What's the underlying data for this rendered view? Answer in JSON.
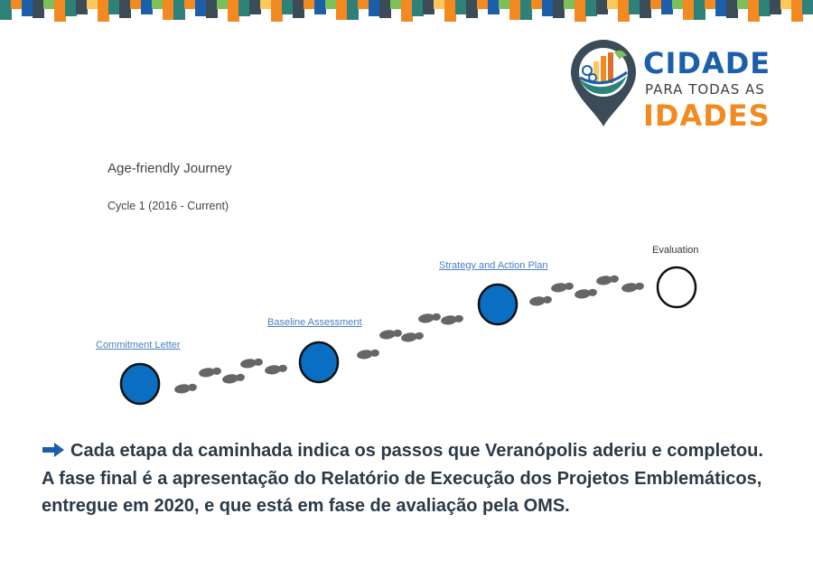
{
  "banner": {
    "colors": [
      "#2e8179",
      "#1b5faa",
      "#3b4c58",
      "#7cc05a",
      "#f28a21",
      "#fcc85c"
    ]
  },
  "logo": {
    "line1": "CIDADE",
    "line2": "PARA TODAS AS",
    "line3": "IDADES",
    "colors": {
      "pin": "#3b4c58",
      "blue": "#1b5faa",
      "orange": "#f28a21"
    }
  },
  "journey": {
    "title": "Age-friendly Journey",
    "cycle": "Cycle 1 (2016 - Current)",
    "stages": [
      {
        "label": "Commitment Letter",
        "completed": true
      },
      {
        "label": "Baseline Assessment",
        "completed": true
      },
      {
        "label": "Strategy and Action Plan",
        "completed": true
      },
      {
        "label": "Evaluation",
        "completed": false
      }
    ],
    "colors": {
      "completed": "#0a6fc2",
      "footprint": "#666666"
    }
  },
  "caption": {
    "arrow_icon": "arrow-right-icon",
    "line1": "Cada etapa da caminhada indica os passos que Veranópolis aderiu e completou.",
    "line2": "A fase final é a apresentação do Relatório de Execução dos Projetos Emblemáticos, entregue em 2020, e que está em fase de avaliação pela OMS."
  }
}
